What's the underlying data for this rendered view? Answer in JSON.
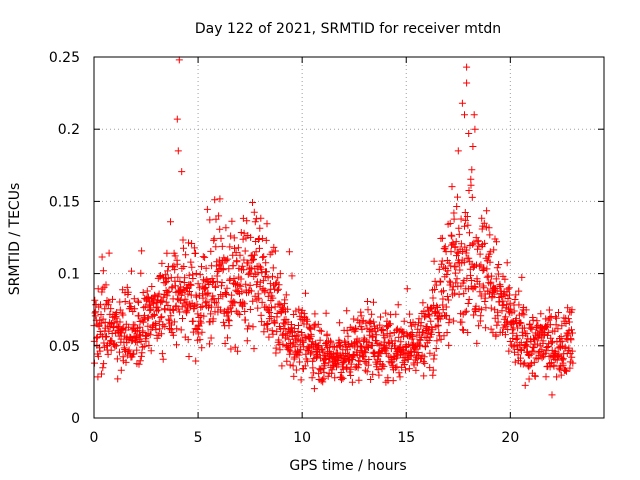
{
  "chart_data": {
    "type": "scatter",
    "title": "Day 122 of 2021, SRMTID for receiver mtdn",
    "xlabel": "GPS time / hours",
    "ylabel": "SRMTID / TECUs",
    "xlim": [
      0,
      24.5
    ],
    "ylim": [
      0,
      0.25
    ],
    "xticks": [
      0,
      5,
      10,
      15,
      20
    ],
    "yticks": [
      0,
      0.05,
      0.1,
      0.15,
      0.2,
      0.25
    ],
    "ytick_labels": [
      "0",
      "0.05",
      "0.1",
      "0.15",
      "0.2",
      "0.25"
    ],
    "grid": true,
    "marker": "+",
    "color": "#ff0000",
    "x_span": [
      0,
      23
    ],
    "step_hours": 0.0125,
    "profile": [
      [
        0,
        0.062
      ],
      [
        0.5,
        0.066
      ],
      [
        1,
        0.065
      ],
      [
        1.5,
        0.058
      ],
      [
        2,
        0.061
      ],
      [
        2.5,
        0.066
      ],
      [
        3,
        0.072
      ],
      [
        3.5,
        0.082
      ],
      [
        4,
        0.088
      ],
      [
        4.5,
        0.085
      ],
      [
        5,
        0.08
      ],
      [
        5.5,
        0.088
      ],
      [
        6,
        0.095
      ],
      [
        6.5,
        0.09
      ],
      [
        7,
        0.092
      ],
      [
        7.5,
        0.095
      ],
      [
        8,
        0.098
      ],
      [
        8.5,
        0.085
      ],
      [
        9,
        0.065
      ],
      [
        9.5,
        0.058
      ],
      [
        10,
        0.052
      ],
      [
        10.5,
        0.05
      ],
      [
        11,
        0.045
      ],
      [
        11.5,
        0.04
      ],
      [
        12,
        0.042
      ],
      [
        12.5,
        0.048
      ],
      [
        13,
        0.052
      ],
      [
        13.5,
        0.055
      ],
      [
        14,
        0.045
      ],
      [
        14.5,
        0.05
      ],
      [
        15,
        0.048
      ],
      [
        15.5,
        0.052
      ],
      [
        16,
        0.058
      ],
      [
        16.5,
        0.075
      ],
      [
        17,
        0.098
      ],
      [
        17.5,
        0.11
      ],
      [
        18,
        0.115
      ],
      [
        18.5,
        0.105
      ],
      [
        19,
        0.095
      ],
      [
        19.5,
        0.08
      ],
      [
        20,
        0.065
      ],
      [
        20.5,
        0.055
      ],
      [
        21,
        0.05
      ],
      [
        21.5,
        0.052
      ],
      [
        22,
        0.05
      ],
      [
        22.5,
        0.052
      ],
      [
        23,
        0.055
      ]
    ],
    "notable_points": [
      {
        "x": 4.1,
        "y": 0.248
      },
      {
        "x": 4.0,
        "y": 0.207
      },
      {
        "x": 4.05,
        "y": 0.185
      },
      {
        "x": 17.9,
        "y": 0.243
      },
      {
        "x": 17.9,
        "y": 0.232
      },
      {
        "x": 17.7,
        "y": 0.218
      },
      {
        "x": 17.8,
        "y": 0.21
      },
      {
        "x": 18.3,
        "y": 0.2
      },
      {
        "x": 18.0,
        "y": 0.197
      },
      {
        "x": 17.5,
        "y": 0.185
      },
      {
        "x": 18.2,
        "y": 0.188
      }
    ]
  }
}
